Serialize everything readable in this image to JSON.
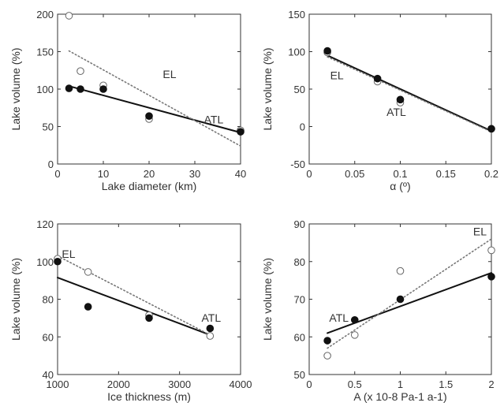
{
  "chart_data": [
    {
      "type": "scatter",
      "xlabel": "Lake diameter (km)",
      "ylabel": "Lake volume (%)",
      "xlim": [
        0,
        40
      ],
      "ylim": [
        0,
        200
      ],
      "xticks": [
        0,
        10,
        20,
        30,
        40
      ],
      "yticks": [
        0,
        50,
        100,
        150,
        200
      ],
      "grid": false,
      "series": [
        {
          "name": "ATL",
          "marker": "filled",
          "x": [
            2.5,
            5,
            10,
            20,
            40
          ],
          "y": [
            101,
            100,
            100,
            64,
            43
          ]
        },
        {
          "name": "EL",
          "marker": "open",
          "x": [
            2.5,
            5,
            10,
            20,
            40
          ],
          "y": [
            198,
            124,
            105,
            60,
            45
          ]
        }
      ],
      "fits": [
        {
          "series": "ATL",
          "style": "solid",
          "x": [
            2.5,
            40
          ],
          "y": [
            104,
            42
          ]
        },
        {
          "series": "EL",
          "style": "dotted",
          "x": [
            2.5,
            40
          ],
          "y": [
            151,
            24
          ]
        }
      ],
      "annotations": [
        {
          "text": "EL",
          "x": 23,
          "y": 115
        },
        {
          "text": "ATL",
          "x": 32,
          "y": 54
        }
      ]
    },
    {
      "type": "scatter",
      "xlabel": "α (º)",
      "ylabel": "Lake volume (%)",
      "xlim": [
        0,
        0.2
      ],
      "ylim": [
        -50,
        150
      ],
      "xticks": [
        0,
        0.05,
        0.1,
        0.15,
        0.2
      ],
      "yticks": [
        -50,
        0,
        50,
        100,
        150
      ],
      "grid": false,
      "series": [
        {
          "name": "ATL",
          "marker": "filled",
          "x": [
            0.02,
            0.075,
            0.1,
            0.2
          ],
          "y": [
            101,
            64,
            36,
            -3
          ]
        },
        {
          "name": "EL",
          "marker": "open",
          "x": [
            0.02,
            0.075,
            0.1,
            0.2
          ],
          "y": [
            99,
            60,
            32,
            -3
          ]
        }
      ],
      "fits": [
        {
          "series": "ATL",
          "style": "solid",
          "x": [
            0.02,
            0.2
          ],
          "y": [
            95,
            -6
          ]
        },
        {
          "series": "EL",
          "style": "dotted",
          "x": [
            0.02,
            0.2
          ],
          "y": [
            93,
            -7
          ]
        }
      ],
      "annotations": [
        {
          "text": "EL",
          "x": 0.023,
          "y": 63
        },
        {
          "text": "ATL",
          "x": 0.085,
          "y": 14
        }
      ]
    },
    {
      "type": "scatter",
      "xlabel": "Ice thickness (m)",
      "ylabel": "Lake volume (%)",
      "xlim": [
        1000,
        4000
      ],
      "ylim": [
        40,
        120
      ],
      "xticks": [
        1000,
        2000,
        3000,
        4000
      ],
      "yticks": [
        40,
        60,
        80,
        100,
        120
      ],
      "grid": false,
      "series": [
        {
          "name": "ATL",
          "marker": "filled",
          "x": [
            1000,
            1500,
            2500,
            3500
          ],
          "y": [
            100,
            76,
            70,
            64.5
          ]
        },
        {
          "name": "EL",
          "marker": "open",
          "x": [
            1000,
            1500,
            2500,
            3500
          ],
          "y": [
            101.5,
            94.5,
            71.5,
            60.5
          ]
        }
      ],
      "fits": [
        {
          "series": "ATL",
          "style": "solid",
          "x": [
            1000,
            3500
          ],
          "y": [
            91.5,
            61
          ]
        },
        {
          "series": "EL",
          "style": "dotted",
          "x": [
            1000,
            3500
          ],
          "y": [
            103,
            61
          ]
        }
      ],
      "annotations": [
        {
          "text": "EL",
          "x": 1070,
          "y": 102
        },
        {
          "text": "ATL",
          "x": 3360,
          "y": 68
        }
      ]
    },
    {
      "type": "scatter",
      "xlabel": "A (x 10-8 Pa-1 a-1)",
      "ylabel": "Lake volume (%)",
      "xlim": [
        0,
        2
      ],
      "ylim": [
        50,
        90
      ],
      "xticks": [
        0,
        0.5,
        1,
        1.5,
        2
      ],
      "yticks": [
        50,
        60,
        70,
        80,
        90
      ],
      "grid": false,
      "series": [
        {
          "name": "ATL",
          "marker": "filled",
          "x": [
            0.2,
            0.5,
            1,
            2
          ],
          "y": [
            59,
            64.5,
            70,
            76
          ]
        },
        {
          "name": "EL",
          "marker": "open",
          "x": [
            0.2,
            0.5,
            1,
            2
          ],
          "y": [
            55,
            60.5,
            77.5,
            83
          ]
        }
      ],
      "fits": [
        {
          "series": "ATL",
          "style": "solid",
          "x": [
            0.2,
            2
          ],
          "y": [
            61,
            77
          ]
        },
        {
          "series": "EL",
          "style": "dotted",
          "x": [
            0.2,
            2
          ],
          "y": [
            57,
            86
          ]
        }
      ],
      "annotations": [
        {
          "text": "EL",
          "x": 1.8,
          "y": 87
        },
        {
          "text": "ATL",
          "x": 0.22,
          "y": 64
        }
      ]
    }
  ]
}
